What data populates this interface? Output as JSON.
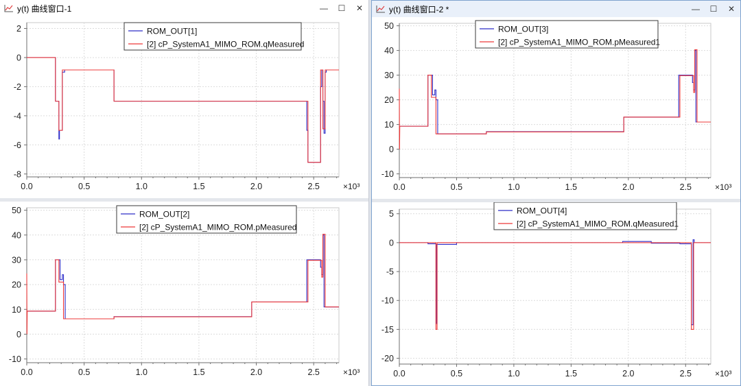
{
  "colors": {
    "blue": "#2c2cc8",
    "red": "#ee3838",
    "grid": "#dcdcdc",
    "axis": "#6e6e6e"
  },
  "windows": [
    {
      "title": "y(t) 曲线窗口-1",
      "icon": "curve-icon",
      "buttons": [
        "—",
        "☐",
        "✕"
      ]
    },
    {
      "title": "y(t) 曲线窗口-2 *",
      "icon": "curve-icon",
      "buttons": [
        "—",
        "☐",
        "✕"
      ]
    }
  ],
  "chart_data": [
    {
      "type": "line",
      "window": 0,
      "xlim": [
        0,
        2.72
      ],
      "ylim": [
        -8.2,
        2.4
      ],
      "x_exponent": "×10³",
      "xticks": [
        "0.0",
        "0.5",
        "1.0",
        "1.5",
        "2.0",
        "2.5"
      ],
      "yticks": [
        "2",
        "0",
        "-2",
        "-4",
        "-6",
        "-8"
      ],
      "grid": true,
      "legend": "top-right",
      "series": [
        {
          "name": "ROM_OUT[1]",
          "color": "blue",
          "points": [
            [
              0,
              0
            ],
            [
              0.25,
              0
            ],
            [
              0.25,
              -3
            ],
            [
              0.28,
              -3
            ],
            [
              0.28,
              -5.6
            ],
            [
              0.285,
              -5.6
            ],
            [
              0.285,
              -5
            ],
            [
              0.31,
              -5
            ],
            [
              0.31,
              -1
            ],
            [
              0.33,
              -1
            ],
            [
              0.33,
              -0.85
            ],
            [
              0.76,
              -0.85
            ],
            [
              0.76,
              -3
            ],
            [
              2.44,
              -3
            ],
            [
              2.44,
              -5
            ],
            [
              2.45,
              -5
            ],
            [
              2.45,
              -7.2
            ],
            [
              2.56,
              -7.2
            ],
            [
              2.56,
              -2
            ],
            [
              2.57,
              -2
            ],
            [
              2.57,
              -0.85
            ],
            [
              2.58,
              -0.85
            ],
            [
              2.58,
              -3
            ],
            [
              2.59,
              -3
            ],
            [
              2.59,
              -5.2
            ],
            [
              2.6,
              -5.2
            ],
            [
              2.6,
              -1
            ],
            [
              2.61,
              -1
            ],
            [
              2.61,
              -0.85
            ],
            [
              2.72,
              -0.85
            ]
          ]
        },
        {
          "name": "[2] cP_SystemA1_MIMO_ROM.qMeasured",
          "color": "red",
          "points": [
            [
              0,
              0
            ],
            [
              0.25,
              0
            ],
            [
              0.25,
              -3
            ],
            [
              0.28,
              -3
            ],
            [
              0.28,
              -5
            ],
            [
              0.31,
              -5
            ],
            [
              0.31,
              -0.85
            ],
            [
              0.76,
              -0.85
            ],
            [
              0.76,
              -3
            ],
            [
              2.45,
              -3
            ],
            [
              2.45,
              -7.2
            ],
            [
              2.56,
              -7.2
            ],
            [
              2.56,
              -0.85
            ],
            [
              2.58,
              -0.85
            ],
            [
              2.58,
              -4.9
            ],
            [
              2.6,
              -4.9
            ],
            [
              2.6,
              -0.85
            ],
            [
              2.72,
              -0.85
            ]
          ]
        }
      ]
    },
    {
      "type": "line",
      "window": 0,
      "xlim": [
        0,
        2.72
      ],
      "ylim": [
        -11.5,
        51
      ],
      "x_exponent": "×10³",
      "xticks": [
        "0.0",
        "0.5",
        "1.0",
        "1.5",
        "2.0",
        "2.5"
      ],
      "yticks": [
        "50",
        "40",
        "30",
        "20",
        "10",
        "0",
        "-10"
      ],
      "grid": true,
      "legend": "top-right",
      "series": [
        {
          "name": "ROM_OUT[2]",
          "color": "blue",
          "points": [
            [
              0,
              9.3
            ],
            [
              0.25,
              9.3
            ],
            [
              0.25,
              30
            ],
            [
              0.29,
              30
            ],
            [
              0.29,
              22
            ],
            [
              0.31,
              22
            ],
            [
              0.31,
              24
            ],
            [
              0.32,
              24
            ],
            [
              0.32,
              20
            ],
            [
              0.335,
              20
            ],
            [
              0.335,
              6.2
            ],
            [
              0.76,
              6.2
            ],
            [
              0.76,
              7.1
            ],
            [
              1.96,
              7.1
            ],
            [
              1.96,
              13
            ],
            [
              2.44,
              13
            ],
            [
              2.44,
              30
            ],
            [
              2.56,
              30
            ],
            [
              2.56,
              27
            ],
            [
              2.57,
              27
            ],
            [
              2.57,
              24
            ],
            [
              2.58,
              24
            ],
            [
              2.58,
              40
            ],
            [
              2.59,
              40
            ],
            [
              2.59,
              11
            ],
            [
              2.72,
              11
            ]
          ]
        },
        {
          "name": "[2] cP_SystemA1_MIMO_ROM.pMeasured",
          "color": "red",
          "points": [
            [
              0,
              24.5
            ],
            [
              0.002,
              0
            ],
            [
              0.004,
              9.3
            ],
            [
              0.25,
              9.3
            ],
            [
              0.25,
              30
            ],
            [
              0.28,
              30
            ],
            [
              0.28,
              21
            ],
            [
              0.32,
              21
            ],
            [
              0.32,
              6.2
            ],
            [
              0.76,
              6.2
            ],
            [
              0.76,
              7
            ],
            [
              1.96,
              7
            ],
            [
              1.96,
              13
            ],
            [
              2.45,
              13
            ],
            [
              2.45,
              29.8
            ],
            [
              2.57,
              29.8
            ],
            [
              2.57,
              23
            ],
            [
              2.58,
              23
            ],
            [
              2.58,
              40.3
            ],
            [
              2.6,
              40.3
            ],
            [
              2.6,
              11
            ],
            [
              2.72,
              11
            ]
          ]
        }
      ]
    },
    {
      "type": "line",
      "window": 1,
      "xlim": [
        0,
        2.72
      ],
      "ylim": [
        -11.5,
        51
      ],
      "x_exponent": "×10³",
      "xticks": [
        "0.0",
        "0.5",
        "1.0",
        "1.5",
        "2.0",
        "2.5"
      ],
      "yticks": [
        "50",
        "40",
        "30",
        "20",
        "10",
        "0",
        "-10"
      ],
      "grid": true,
      "legend": "top-right",
      "series": [
        {
          "name": "ROM_OUT[3]",
          "color": "blue",
          "points": [
            [
              0,
              9.3
            ],
            [
              0.25,
              9.3
            ],
            [
              0.25,
              30
            ],
            [
              0.29,
              30
            ],
            [
              0.29,
              22
            ],
            [
              0.31,
              22
            ],
            [
              0.31,
              24
            ],
            [
              0.32,
              24
            ],
            [
              0.32,
              20
            ],
            [
              0.335,
              20
            ],
            [
              0.335,
              6.2
            ],
            [
              0.76,
              6.2
            ],
            [
              0.76,
              7.1
            ],
            [
              1.96,
              7.1
            ],
            [
              1.96,
              13
            ],
            [
              2.44,
              13
            ],
            [
              2.44,
              30
            ],
            [
              2.56,
              30
            ],
            [
              2.56,
              27
            ],
            [
              2.57,
              27
            ],
            [
              2.57,
              24
            ],
            [
              2.58,
              24
            ],
            [
              2.58,
              40
            ],
            [
              2.59,
              40
            ],
            [
              2.59,
              11
            ],
            [
              2.72,
              11
            ]
          ]
        },
        {
          "name": "[2] cP_SystemA1_MIMO_ROM.pMeasured1",
          "color": "red",
          "points": [
            [
              0,
              24.5
            ],
            [
              0.002,
              0
            ],
            [
              0.004,
              9.3
            ],
            [
              0.25,
              9.3
            ],
            [
              0.25,
              30
            ],
            [
              0.28,
              30
            ],
            [
              0.28,
              21
            ],
            [
              0.32,
              21
            ],
            [
              0.32,
              6.2
            ],
            [
              0.76,
              6.2
            ],
            [
              0.76,
              7
            ],
            [
              1.96,
              7
            ],
            [
              1.96,
              13
            ],
            [
              2.45,
              13
            ],
            [
              2.45,
              29.8
            ],
            [
              2.57,
              29.8
            ],
            [
              2.57,
              23
            ],
            [
              2.58,
              23
            ],
            [
              2.58,
              40.3
            ],
            [
              2.6,
              40.3
            ],
            [
              2.6,
              11
            ],
            [
              2.72,
              11
            ]
          ]
        }
      ]
    },
    {
      "type": "line",
      "window": 1,
      "xlim": [
        0,
        2.72
      ],
      "ylim": [
        -21,
        5.8
      ],
      "x_exponent": "×10³",
      "xticks": [
        "0.0",
        "0.5",
        "1.0",
        "1.5",
        "2.0",
        "2.5"
      ],
      "yticks": [
        "5",
        "0",
        "-5",
        "-10",
        "-15",
        "-20"
      ],
      "grid": true,
      "legend": "top-right",
      "series": [
        {
          "name": "ROM_OUT[4]",
          "color": "blue",
          "points": [
            [
              0,
              0
            ],
            [
              0.25,
              0
            ],
            [
              0.25,
              -0.2
            ],
            [
              0.32,
              -0.2
            ],
            [
              0.32,
              -14
            ],
            [
              0.325,
              -14
            ],
            [
              0.325,
              -0.3
            ],
            [
              0.5,
              -0.3
            ],
            [
              0.5,
              0
            ],
            [
              1.95,
              0
            ],
            [
              1.95,
              0.2
            ],
            [
              2.2,
              0.2
            ],
            [
              2.2,
              -0.1
            ],
            [
              2.45,
              -0.1
            ],
            [
              2.45,
              -0.2
            ],
            [
              2.55,
              -0.2
            ],
            [
              2.55,
              -14.2
            ],
            [
              2.565,
              -14.2
            ],
            [
              2.565,
              0.5
            ],
            [
              2.575,
              0.5
            ],
            [
              2.575,
              0
            ],
            [
              2.72,
              0
            ]
          ]
        },
        {
          "name": "[2] cP_SystemA1_MIMO_ROM.qMeasured1",
          "color": "red",
          "points": [
            [
              0,
              0
            ],
            [
              0.32,
              0
            ],
            [
              0.32,
              -15
            ],
            [
              0.33,
              -15
            ],
            [
              0.33,
              0
            ],
            [
              2.55,
              0
            ],
            [
              2.55,
              -15
            ],
            [
              2.57,
              -15
            ],
            [
              2.57,
              0
            ],
            [
              2.72,
              0
            ]
          ]
        }
      ]
    }
  ]
}
